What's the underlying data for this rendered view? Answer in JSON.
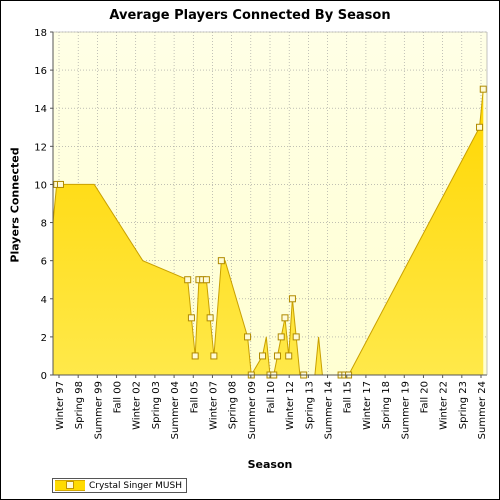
{
  "chart_data": {
    "type": "area",
    "title": "Average Players Connected By Season",
    "xlabel": "Season",
    "ylabel": "Players Connected",
    "ylim": [
      0,
      18
    ],
    "yticks": [
      0,
      2,
      4,
      6,
      8,
      10,
      12,
      14,
      16,
      18
    ],
    "grid": true,
    "legend_position": "bottom-left",
    "tick_labels": [
      "Winter 97",
      "Spring 98",
      "Summer 99",
      "Fall 00",
      "Winter 02",
      "Spring 03",
      "Summer 04",
      "Fall 05",
      "Winter 07",
      "Spring 08",
      "Summer 09",
      "Fall 10",
      "Winter 12",
      "Spring 13",
      "Summer 14",
      "Fall 15",
      "Winter 17",
      "Spring 18",
      "Summer 19",
      "Fall 20",
      "Winter 22",
      "Spring 23",
      "Summer 24"
    ],
    "colors": {
      "fill": "#ffdb00",
      "line": "#c9a000",
      "plot_background": "#ffffe8",
      "grid": "#9a9a9a"
    },
    "series": [
      {
        "name": "Crystal Singer MUSH",
        "points": [
          {
            "x": 0,
            "y": 8
          },
          {
            "x": 1,
            "y": 10
          },
          {
            "x": 2,
            "y": 10
          },
          {
            "x": 5,
            "y": 10
          },
          {
            "x": 6,
            "y": 10
          },
          {
            "x": 7,
            "y": 10
          },
          {
            "x": 8,
            "y": 10
          },
          {
            "x": 9,
            "y": 10
          },
          {
            "x": 11,
            "y": 10
          },
          {
            "x": 24,
            "y": 6
          },
          {
            "x": 36,
            "y": 5
          },
          {
            "x": 37,
            "y": 3
          },
          {
            "x": 38,
            "y": 1
          },
          {
            "x": 39,
            "y": 5
          },
          {
            "x": 40,
            "y": 5
          },
          {
            "x": 41,
            "y": 5
          },
          {
            "x": 42,
            "y": 3
          },
          {
            "x": 43,
            "y": 1
          },
          {
            "x": 45,
            "y": 6
          },
          {
            "x": 46,
            "y": 6
          },
          {
            "x": 52,
            "y": 2
          },
          {
            "x": 53,
            "y": 0
          },
          {
            "x": 56,
            "y": 1
          },
          {
            "x": 57,
            "y": 2
          },
          {
            "x": 58,
            "y": 0
          },
          {
            "x": 59,
            "y": 0
          },
          {
            "x": 60,
            "y": 1
          },
          {
            "x": 61,
            "y": 2
          },
          {
            "x": 62,
            "y": 3
          },
          {
            "x": 63,
            "y": 1
          },
          {
            "x": 64,
            "y": 4
          },
          {
            "x": 65,
            "y": 2
          },
          {
            "x": 66,
            "y": 0
          },
          {
            "x": 67,
            "y": 0
          },
          {
            "x": 68,
            "y": 0
          },
          {
            "x": 69,
            "y": 0
          },
          {
            "x": 70,
            "y": 0
          },
          {
            "x": 71,
            "y": 2
          },
          {
            "x": 72,
            "y": 0
          },
          {
            "x": 73,
            "y": 0
          },
          {
            "x": 74,
            "y": 0
          },
          {
            "x": 75,
            "y": 0
          },
          {
            "x": 76,
            "y": 0
          },
          {
            "x": 77,
            "y": 0
          },
          {
            "x": 78,
            "y": 0
          },
          {
            "x": 79,
            "y": 0
          },
          {
            "x": 114,
            "y": 13
          },
          {
            "x": 115,
            "y": 15
          }
        ],
        "markers": [
          1,
          2,
          10,
          11,
          12,
          13,
          14,
          15,
          16,
          17,
          18,
          20,
          21,
          22,
          24,
          25,
          26,
          27,
          28,
          29,
          30,
          31,
          33,
          43,
          44,
          45,
          46,
          47,
          48,
          49,
          50
        ]
      }
    ]
  }
}
